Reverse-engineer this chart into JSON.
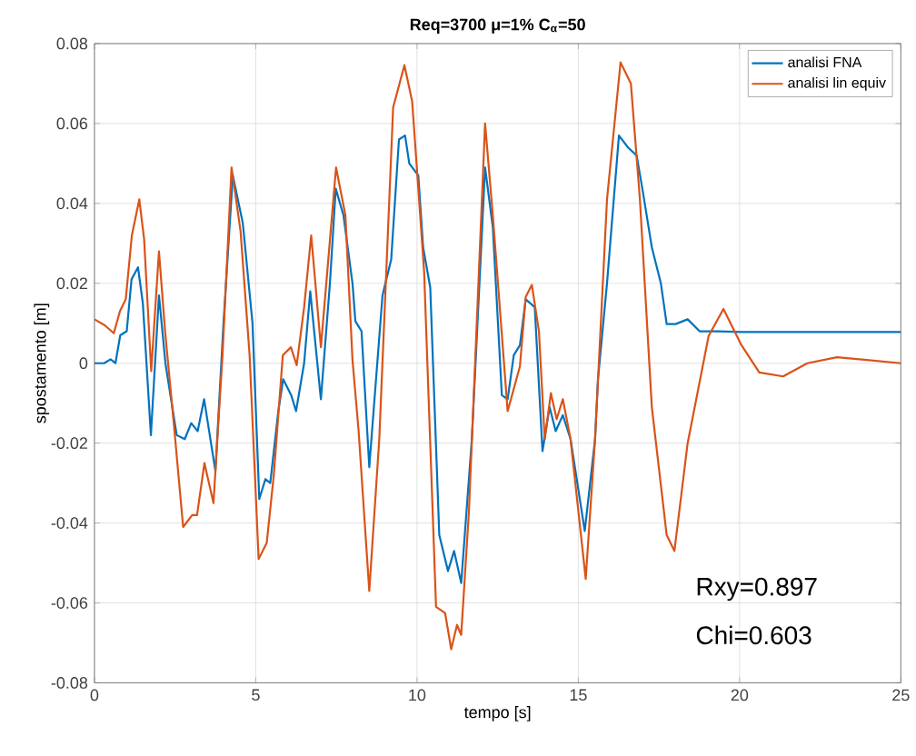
{
  "chart_data": {
    "type": "line",
    "title": "Req=3700 μ=1% C$_{α}$=50",
    "xlabel": "tempo [s]",
    "ylabel": "spostamento [m]",
    "xlim": [
      0,
      25
    ],
    "ylim": [
      -0.08,
      0.08
    ],
    "xticks": [
      0,
      5,
      10,
      15,
      20,
      25
    ],
    "yticks": [
      -0.08,
      -0.06,
      -0.04,
      -0.02,
      0,
      0.02,
      0.04,
      0.06,
      0.08
    ],
    "grid": true,
    "legend": "top right",
    "annotations": [
      "Rxy=0.897",
      "Chi=0.603"
    ],
    "series": [
      {
        "name": "analisi FNA",
        "color": "#0072bd",
        "x": [
          0,
          0.3,
          0.5,
          0.65,
          0.8,
          1.0,
          1.15,
          1.35,
          1.5,
          1.75,
          2.0,
          2.2,
          2.55,
          2.8,
          3.0,
          3.2,
          3.4,
          3.75,
          4.0,
          4.29,
          4.6,
          4.9,
          5.11,
          5.3,
          5.45,
          5.7,
          5.85,
          6.1,
          6.25,
          6.5,
          6.69,
          7.02,
          7.3,
          7.48,
          7.72,
          8.0,
          8.09,
          8.28,
          8.52,
          8.93,
          9.2,
          9.44,
          9.63,
          9.76,
          10.04,
          10.19,
          10.41,
          10.69,
          10.96,
          11.15,
          11.37,
          11.7,
          12.11,
          12.35,
          12.63,
          12.81,
          13.0,
          13.19,
          13.37,
          13.65,
          13.89,
          14.11,
          14.3,
          14.52,
          14.76,
          15.2,
          15.52,
          15.61,
          15.89,
          16.26,
          16.54,
          16.81,
          17.0,
          17.28,
          17.56,
          17.74,
          18.02,
          18.39,
          18.76,
          19.31,
          20.06,
          25
        ],
        "values": [
          0,
          0,
          0.001,
          0,
          0.007,
          0.008,
          0.021,
          0.024,
          0.015,
          -0.018,
          0.017,
          0,
          -0.018,
          -0.019,
          -0.015,
          -0.017,
          -0.009,
          -0.027,
          0.01,
          0.047,
          0.035,
          0.01,
          -0.034,
          -0.029,
          -0.03,
          -0.012,
          -0.004,
          -0.008,
          -0.012,
          0,
          0.018,
          -0.009,
          0.02,
          0.0437,
          0.037,
          0.02,
          0.0105,
          0.008,
          -0.026,
          0.017,
          0.026,
          0.056,
          0.057,
          0.05,
          0.047,
          0.029,
          0.019,
          -0.043,
          -0.052,
          -0.047,
          -0.055,
          -0.019,
          0.049,
          0.034,
          -0.008,
          -0.009,
          0.002,
          0.0045,
          0.016,
          0.014,
          -0.022,
          -0.011,
          -0.017,
          -0.013,
          -0.019,
          -0.042,
          -0.019,
          -0.004,
          0.02,
          0.057,
          0.054,
          0.052,
          0.043,
          0.029,
          0.02,
          0.0098,
          0.0098,
          0.011,
          0.008,
          0.008,
          0.0078,
          0.0078
        ]
      },
      {
        "name": "analisi lin equiv",
        "color": "#d95319",
        "x": [
          0,
          0.32,
          0.6,
          0.79,
          0.97,
          1.16,
          1.39,
          1.54,
          1.76,
          2.0,
          2.19,
          2.47,
          2.75,
          3.03,
          3.18,
          3.41,
          3.69,
          3.97,
          4.25,
          4.53,
          4.81,
          5.09,
          5.34,
          5.56,
          5.84,
          6.09,
          6.27,
          6.5,
          6.72,
          7.02,
          7.25,
          7.49,
          7.78,
          8.0,
          8.19,
          8.52,
          8.83,
          9.26,
          9.61,
          9.85,
          10.22,
          10.59,
          10.87,
          11.06,
          11.24,
          11.37,
          11.61,
          12.11,
          12.35,
          12.81,
          13.19,
          13.37,
          13.56,
          13.78,
          13.96,
          14.15,
          14.33,
          14.52,
          14.76,
          15.23,
          15.52,
          15.89,
          16.31,
          16.63,
          16.91,
          17.28,
          17.74,
          17.98,
          18.39,
          19.04,
          19.5,
          20.06,
          20.61,
          21.35,
          22.1,
          23.02,
          23.94,
          25
        ],
        "values": [
          0.011,
          0.0095,
          0.0075,
          0.013,
          0.016,
          0.032,
          0.041,
          0.031,
          -0.002,
          0.028,
          0.008,
          -0.016,
          -0.041,
          -0.038,
          -0.038,
          -0.025,
          -0.035,
          0.002,
          0.049,
          0.033,
          0.002,
          -0.049,
          -0.045,
          -0.028,
          0.002,
          0.004,
          -0.0005,
          0.014,
          0.032,
          0.004,
          0.026,
          0.049,
          0.037,
          0.0008,
          -0.017,
          -0.057,
          -0.019,
          0.064,
          0.0746,
          0.0655,
          0.023,
          -0.061,
          -0.0625,
          -0.0716,
          -0.0655,
          -0.068,
          -0.037,
          0.06,
          0.037,
          -0.012,
          -0.0008,
          0.0166,
          0.0196,
          0.008,
          -0.019,
          -0.0075,
          -0.014,
          -0.009,
          -0.019,
          -0.054,
          -0.019,
          0.041,
          0.0753,
          0.07,
          0.041,
          -0.011,
          -0.043,
          -0.047,
          -0.02,
          0.0068,
          0.0136,
          0.0045,
          -0.0023,
          -0.0033,
          0,
          0.0015,
          0.0008,
          0
        ]
      }
    ]
  }
}
